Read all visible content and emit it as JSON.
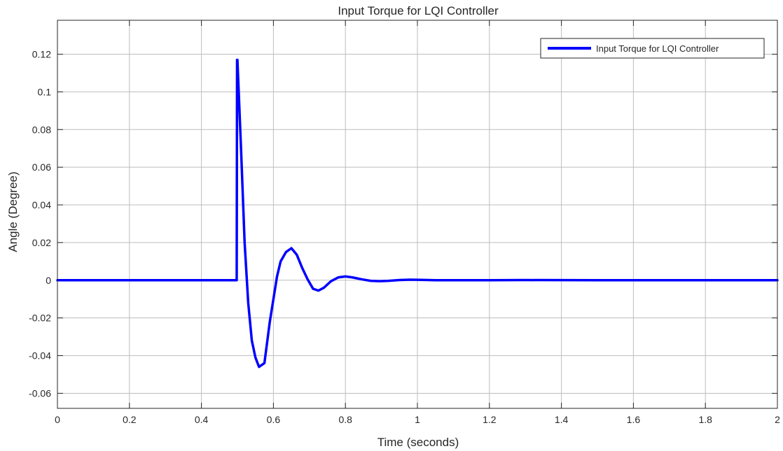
{
  "chart_data": {
    "type": "line",
    "title": "Input Torque for LQI Controller",
    "xlabel": "Time (seconds)",
    "ylabel": "Angle (Degree)",
    "xlim": [
      0,
      2
    ],
    "ylim": [
      -0.068,
      0.138
    ],
    "xticks": [
      0,
      0.2,
      0.4,
      0.6,
      0.8,
      1,
      1.2,
      1.4,
      1.6,
      1.8,
      2
    ],
    "xtick_labels": [
      "0",
      "0.2",
      "0.4",
      "0.6",
      "0.8",
      "1",
      "1.2",
      "1.4",
      "1.6",
      "1.8",
      "2"
    ],
    "yticks": [
      -0.06,
      -0.04,
      -0.02,
      0,
      0.02,
      0.04,
      0.06,
      0.08,
      0.1,
      0.12
    ],
    "ytick_labels": [
      "-0.06",
      "-0.04",
      "-0.02",
      "0",
      "0.02",
      "0.04",
      "0.06",
      "0.08",
      "0.1",
      "0.12"
    ],
    "grid": true,
    "legend_position": "top-right",
    "series": [
      {
        "name": "Input Torque for LQI Controller",
        "color": "#0000ff",
        "x": [
          0,
          0.498,
          0.499,
          0.5,
          0.51,
          0.52,
          0.53,
          0.54,
          0.55,
          0.56,
          0.575,
          0.59,
          0.6,
          0.61,
          0.62,
          0.635,
          0.65,
          0.665,
          0.68,
          0.695,
          0.71,
          0.725,
          0.74,
          0.76,
          0.78,
          0.8,
          0.82,
          0.845,
          0.87,
          0.895,
          0.92,
          0.95,
          0.98,
          1.01,
          1.05,
          1.1,
          1.2,
          1.3,
          1.5,
          2.0
        ],
        "values": [
          0,
          0,
          0.117,
          0.117,
          0.07,
          0.02,
          -0.012,
          -0.032,
          -0.041,
          -0.046,
          -0.044,
          -0.022,
          -0.01,
          0.002,
          0.01,
          0.015,
          0.017,
          0.0135,
          0.0065,
          0.0005,
          -0.0045,
          -0.0055,
          -0.004,
          -0.0005,
          0.0015,
          0.002,
          0.0015,
          0.0005,
          -0.0003,
          -0.0005,
          -0.0003,
          0.0001,
          0.0003,
          0.0002,
          0.0,
          0.0,
          0.0,
          0.0001,
          0.0,
          0.0
        ]
      }
    ]
  }
}
